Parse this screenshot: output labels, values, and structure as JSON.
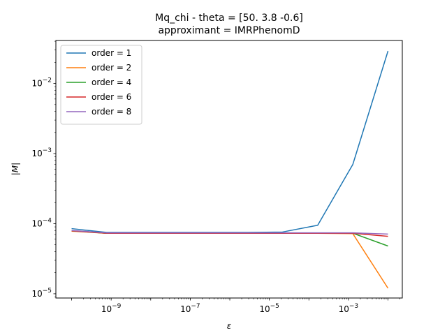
{
  "chart_data": {
    "type": "line",
    "title": "Mq_chi - theta = [50.   3.8 -0.6]",
    "subtitle": "approximant = IMRPhenomD",
    "xlabel": "ε",
    "ylabel": "|M|",
    "xscale": "log",
    "yscale": "log",
    "xlim": [
      4e-11,
      0.023
    ],
    "ylim": [
      8.7e-06,
      0.041
    ],
    "grid": false,
    "legend_position": "top-left",
    "x_ticks": [
      {
        "value": 1e-09,
        "base": "10",
        "exp": "−9"
      },
      {
        "value": 1e-07,
        "base": "10",
        "exp": "−7"
      },
      {
        "value": 1e-05,
        "base": "10",
        "exp": "−5"
      },
      {
        "value": 0.001,
        "base": "10",
        "exp": "−3"
      }
    ],
    "y_ticks": [
      {
        "value": 1e-05,
        "base": "10",
        "exp": "−5"
      },
      {
        "value": 0.0001,
        "base": "10",
        "exp": "−4"
      },
      {
        "value": 0.001,
        "base": "10",
        "exp": "−3"
      },
      {
        "value": 0.01,
        "base": "10",
        "exp": "−2"
      }
    ],
    "x": [
      1e-10,
      7.74e-10,
      5.99e-09,
      4.64e-08,
      3.59e-07,
      2.78e-06,
      2.15e-05,
      0.000167,
      0.00129,
      0.01
    ],
    "series": [
      {
        "name": "order = 1",
        "color": "#1f77b4",
        "values": [
          8.5e-05,
          7.5e-05,
          7.5e-05,
          7.5e-05,
          7.5e-05,
          7.5e-05,
          7.6e-05,
          9.5e-05,
          0.0007,
          0.029
        ]
      },
      {
        "name": "order = 2",
        "color": "#ff7f0e",
        "values": [
          7.8e-05,
          7.3e-05,
          7.3e-05,
          7.3e-05,
          7.3e-05,
          7.3e-05,
          7.3e-05,
          7.3e-05,
          7.2e-05,
          1.2e-05
        ]
      },
      {
        "name": "order = 4",
        "color": "#2ca02c",
        "values": [
          7.9e-05,
          7.3e-05,
          7.3e-05,
          7.3e-05,
          7.3e-05,
          7.3e-05,
          7.3e-05,
          7.3e-05,
          7.3e-05,
          4.8e-05
        ]
      },
      {
        "name": "order = 6",
        "color": "#d62728",
        "values": [
          7.9e-05,
          7.3e-05,
          7.3e-05,
          7.3e-05,
          7.3e-05,
          7.3e-05,
          7.3e-05,
          7.3e-05,
          7.3e-05,
          6.6e-05
        ]
      },
      {
        "name": "order = 8",
        "color": "#9467bd",
        "values": [
          8e-05,
          7.4e-05,
          7.4e-05,
          7.4e-05,
          7.4e-05,
          7.4e-05,
          7.4e-05,
          7.4e-05,
          7.4e-05,
          7.1e-05
        ]
      }
    ]
  }
}
